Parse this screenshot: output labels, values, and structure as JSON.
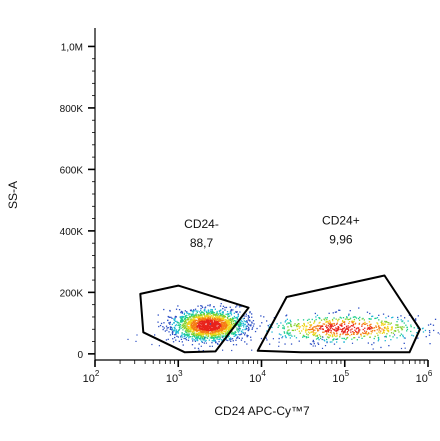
{
  "chart_data": {
    "type": "scatter",
    "title": "",
    "xlabel": "CD24 APC-Cy™7",
    "ylabel": "SS-A",
    "x_scale": "log",
    "xlim": [
      100,
      1000000
    ],
    "ylim": [
      -20000,
      1060000
    ],
    "x_ticks": [
      {
        "value": 100,
        "base": "10",
        "exp": "2"
      },
      {
        "value": 1000,
        "base": "10",
        "exp": "3"
      },
      {
        "value": 10000,
        "base": "10",
        "exp": "4"
      },
      {
        "value": 100000,
        "base": "10",
        "exp": "5"
      },
      {
        "value": 1000000,
        "base": "10",
        "exp": "6"
      }
    ],
    "y_ticks": [
      {
        "value": 0,
        "label": "0"
      },
      {
        "value": 200000,
        "label": "200K"
      },
      {
        "value": 400000,
        "label": "400K"
      },
      {
        "value": 600000,
        "label": "600K"
      },
      {
        "value": 800000,
        "label": "800K"
      },
      {
        "value": 1000000,
        "label": "1,0M"
      }
    ],
    "gates": [
      {
        "name": "CD24-",
        "value": "88,7",
        "label_at": [
          1900,
          410000
        ],
        "polygon": [
          [
            350,
            195000
          ],
          [
            1000,
            222000
          ],
          [
            7000,
            150000
          ],
          [
            2800,
            8000
          ],
          [
            1200,
            5000
          ],
          [
            380,
            70000
          ]
        ]
      },
      {
        "name": "CD24+",
        "value": "9,96",
        "label_at": [
          90000,
          420000
        ],
        "polygon": [
          [
            9000,
            10000
          ],
          [
            20000,
            185000
          ],
          [
            300000,
            255000
          ],
          [
            800000,
            80000
          ],
          [
            600000,
            5000
          ],
          [
            30000,
            5000
          ]
        ]
      }
    ],
    "populations": [
      {
        "name": "CD24-",
        "center": [
          2300,
          95000
        ],
        "spread_log_x": 0.22,
        "spread_y": 26000,
        "count": 1900
      },
      {
        "name": "CD24+",
        "center": [
          100000,
          85000
        ],
        "spread_log_x": 0.48,
        "spread_y": 22000,
        "count": 700
      }
    ],
    "grid": false,
    "legend": "none"
  }
}
